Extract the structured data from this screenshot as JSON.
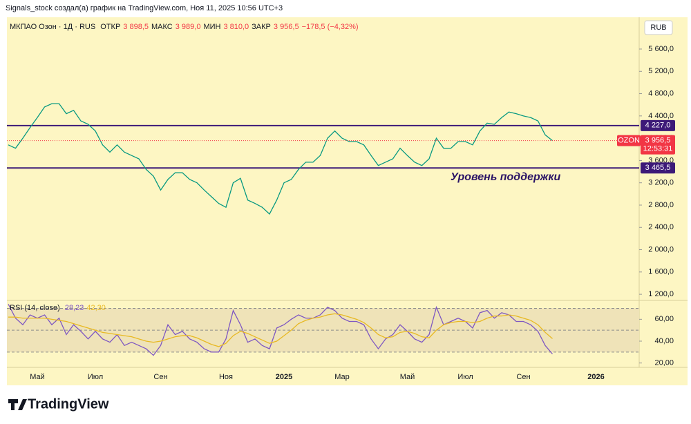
{
  "header": {
    "caption": "Signals_stock создал(а) график на TradingView.com, Ноя 11, 2025 10:56 UTC+3",
    "symbol": "МКПАО Озон · 1Д · RUS",
    "ohlc": [
      {
        "name": "ОТКР",
        "label": "3 898,5"
      },
      {
        "name": "МАКС",
        "label": "3 989,0"
      },
      {
        "name": "МИН",
        "label": "3 810,0"
      },
      {
        "name": "ЗАКР",
        "label": "3 956,5"
      }
    ],
    "change": "−178,5 (−4,32%)",
    "currency": "RUB",
    "logo": "TradingView"
  },
  "chart_data": [
    {
      "type": "line",
      "annotation": "Уровень поддержки",
      "categories": [
        null,
        null,
        null,
        null,
        "Май",
        null,
        null,
        null,
        null,
        null,
        null,
        null,
        "Июл",
        null,
        null,
        null,
        null,
        null,
        null,
        null,
        null,
        "Сен",
        null,
        null,
        null,
        null,
        null,
        null,
        null,
        null,
        "Ноя",
        null,
        null,
        null,
        null,
        null,
        null,
        null,
        "2025",
        null,
        null,
        null,
        null,
        null,
        null,
        null,
        "Мар",
        null,
        null,
        null,
        null,
        null,
        null,
        null,
        null,
        "Май",
        null,
        null,
        null,
        null,
        null,
        null,
        null,
        "Июл",
        null,
        null,
        null,
        null,
        null,
        null,
        null,
        "Сен",
        null,
        null,
        null,
        null,
        null,
        null,
        null,
        null,
        null,
        "2026",
        null,
        null,
        null,
        null,
        null
      ],
      "series": [
        {
          "name": "OZON",
          "color": "#089981",
          "values": [
            3880,
            3820,
            4000,
            4190,
            4370,
            4560,
            4620,
            4620,
            4440,
            4500,
            4310,
            4250,
            4130,
            3880,
            3750,
            3880,
            3750,
            3690,
            3630,
            3440,
            3320,
            3070,
            3260,
            3380,
            3380,
            3260,
            3200,
            3070,
            2950,
            2830,
            2760,
            3200,
            3280,
            2890,
            2830,
            2760,
            2640,
            2890,
            3200,
            3260,
            3440,
            3570,
            3570,
            3690,
            4000,
            4130,
            4000,
            3940,
            3940,
            3880,
            3690,
            3510,
            3570,
            3630,
            3820,
            3690,
            3570,
            3510,
            3630,
            4000,
            3820,
            3820,
            3940,
            3940,
            3880,
            4130,
            4270,
            4250,
            4370,
            4470,
            4440,
            4400,
            4370,
            4310,
            4060,
            3956.5,
            null,
            null,
            null,
            null,
            null,
            null,
            null,
            null,
            null,
            null,
            null
          ]
        }
      ],
      "levels": [
        {
          "value": 4227,
          "label": "4 227,0",
          "color": "#3d1a78"
        },
        {
          "value": 3465.5,
          "label": "3 465,5",
          "color": "#3d1a78"
        }
      ],
      "last": {
        "value": 3956.5,
        "label": "3 956,5",
        "symbol": "OZON",
        "countdown": "12:53:31",
        "color": "#f23645"
      },
      "ylim": [
        1090,
        6170
      ],
      "yticks": [
        {
          "value": 1200,
          "label": "1 200,0"
        },
        {
          "value": 1600,
          "label": "1 600,0"
        },
        {
          "value": 2000,
          "label": "2 000,0"
        },
        {
          "value": 2400,
          "label": "2 400,0"
        },
        {
          "value": 2800,
          "label": "2 800,0"
        },
        {
          "value": 3200,
          "label": "3 200,0"
        },
        {
          "value": 3600,
          "label": "3 600,0"
        },
        {
          "value": 4000,
          "label": "4 000,0"
        },
        {
          "value": 4400,
          "label": "4 400,0"
        },
        {
          "value": 4800,
          "label": "4 800,0"
        },
        {
          "value": 5200,
          "label": "5 200,0"
        },
        {
          "value": 5600,
          "label": "5 600,0"
        }
      ]
    },
    {
      "type": "line",
      "title": "RSI (14, close)",
      "series": [
        {
          "name": "RSI",
          "color": "#7e57c2",
          "value_label": "28,23",
          "values": [
            73.8,
            61,
            55,
            64,
            61,
            64,
            55,
            61,
            46,
            55,
            49,
            42,
            49,
            42,
            39,
            46,
            36,
            39,
            36,
            33,
            27,
            36,
            55,
            46,
            49,
            42,
            39,
            33,
            30,
            30,
            42,
            68,
            55,
            39,
            42,
            36,
            33,
            52,
            55,
            60,
            64,
            61,
            61,
            64,
            71,
            68,
            61,
            58,
            58,
            55,
            42,
            33,
            42,
            46,
            55,
            49,
            42,
            39,
            46,
            71,
            55,
            58,
            61,
            58,
            52,
            66,
            68,
            61,
            66,
            64,
            58,
            58,
            55,
            49,
            36,
            28.23
          ]
        },
        {
          "name": "MA",
          "color": "#e8b923",
          "value_label": "42,30",
          "values": [
            62,
            62,
            61,
            61,
            61,
            61,
            60,
            59,
            58,
            56,
            54,
            52,
            50,
            48,
            47,
            46,
            45,
            44,
            42,
            40,
            39,
            40,
            42,
            44,
            45,
            45,
            43,
            40,
            37,
            35,
            38,
            45,
            49,
            47,
            44,
            41,
            38,
            40,
            45,
            50,
            56,
            59,
            61,
            62,
            64,
            65,
            64,
            62,
            60,
            57,
            52,
            46,
            43,
            44,
            48,
            49,
            47,
            44,
            43,
            50,
            55,
            57,
            58,
            58,
            57,
            58,
            61,
            63,
            63,
            64,
            63,
            61,
            59,
            55,
            48,
            42.3
          ]
        }
      ],
      "bands": [
        70,
        50,
        30
      ],
      "ylim": [
        16,
        76
      ],
      "yticks": [
        {
          "value": 20,
          "label": "20,00"
        },
        {
          "value": 40,
          "label": "40,00"
        },
        {
          "value": 60,
          "label": "60,00"
        }
      ]
    }
  ]
}
